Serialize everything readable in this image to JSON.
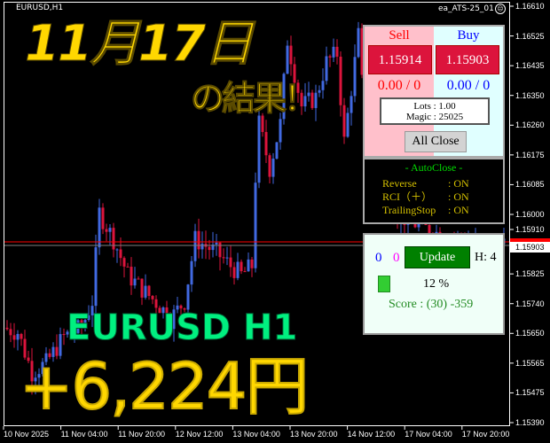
{
  "chart": {
    "symbol": "EURUSD,H1",
    "ea_name": "ea_ATS-25_01",
    "ea_status_icon": "sad-face-icon",
    "colors": {
      "bull": "#4169e1",
      "bear": "#dc143c",
      "ask_line": "#ff0000",
      "bid_line": "#808080",
      "background": "#000000"
    },
    "price_axis": [
      "1.16610",
      "1.16525",
      "1.16435",
      "1.16350",
      "1.16260",
      "1.16175",
      "1.16085",
      "1.16000",
      "1.15910",
      "1.15825",
      "1.15740",
      "1.15650",
      "1.15565",
      "1.15475",
      "1.15390"
    ],
    "bid_label": "1.15903",
    "ask_label": "1.15914",
    "time_axis": [
      "10 Nov 2025",
      "11 Nov 04:00",
      "11 Nov 20:00",
      "12 Nov 12:00",
      "13 Nov 04:00",
      "13 Nov 20:00",
      "14 Nov 12:00",
      "17 Nov 04:00",
      "17 Nov 20:00"
    ],
    "price_range": [
      1.1539,
      1.1661
    ],
    "approx_price_path": [
      [
        0,
        1.15668
      ],
      [
        4,
        1.15655
      ],
      [
        8,
        1.15538
      ],
      [
        12,
        1.15564
      ],
      [
        17,
        1.15642
      ],
      [
        22,
        1.15668
      ],
      [
        25,
        1.15746
      ],
      [
        27,
        1.16005
      ],
      [
        31,
        1.15927
      ],
      [
        35,
        1.15823
      ],
      [
        40,
        1.15771
      ],
      [
        44,
        1.15733
      ],
      [
        47,
        1.15694
      ],
      [
        51,
        1.15746
      ],
      [
        54,
        1.15927
      ],
      [
        60,
        1.15888
      ],
      [
        64,
        1.15849
      ],
      [
        67,
        1.15823
      ],
      [
        70,
        1.15849
      ],
      [
        71,
        1.16109
      ],
      [
        72,
        1.16265
      ],
      [
        75,
        1.16135
      ],
      [
        78,
        1.16265
      ],
      [
        80,
        1.16511
      ],
      [
        84,
        1.16317
      ],
      [
        88,
        1.16343
      ],
      [
        91,
        1.16446
      ],
      [
        94,
        1.16472
      ],
      [
        96,
        1.16213
      ],
      [
        99,
        1.16446
      ],
      [
        100,
        1.16524
      ],
      [
        103,
        1.16109
      ],
      [
        110,
        1.16005
      ],
      [
        120,
        1.15953
      ],
      [
        128,
        1.15927
      ],
      [
        140,
        1.15901
      ]
    ]
  },
  "overlay": {
    "date_title": "11月17日",
    "result_title": "の結果！",
    "pair_label": "EURUSD H1",
    "profit": "+6,224円"
  },
  "trade_panel": {
    "sell_label": "Sell",
    "buy_label": "Buy",
    "sell_price": "1.15914",
    "buy_price": "1.15903",
    "sell_pl": "0.00 / 0",
    "buy_pl": "0.00 / 0",
    "lots": "Lots   : 1.00",
    "magic": "Magic : 25025",
    "all_close": "All Close"
  },
  "autoclose": {
    "title": "- AutoClose -",
    "rows": [
      {
        "label": "Reverse",
        "value": ": ON"
      },
      {
        "label": "RCI（＋）",
        "value": ": ON"
      },
      {
        "label": "TrailingStop",
        "value": ": ON"
      }
    ]
  },
  "status_panel": {
    "count_blue": "0",
    "count_magenta": "0",
    "update_label": "Update",
    "hours": "H: 4",
    "percent": "12 %",
    "progress_percent": 12,
    "score": "Score : (30) -359"
  }
}
